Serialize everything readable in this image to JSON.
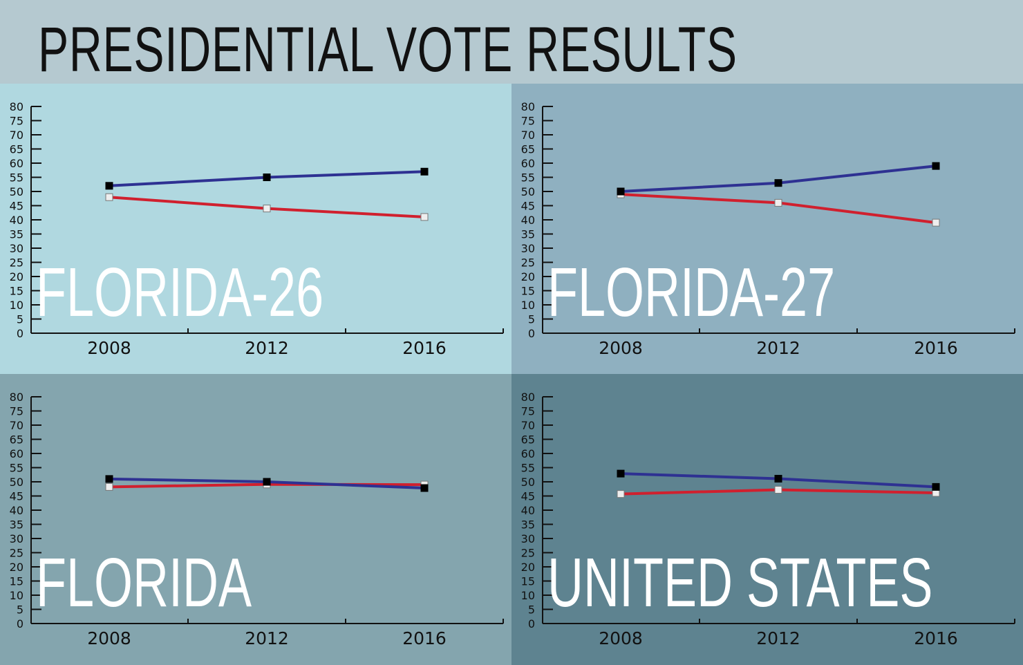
{
  "title": "PRESIDENTIAL VOTE RESULTS",
  "colors": {
    "background": "#b5c9d0",
    "blue_series": "#2e3192",
    "red_series": "#d0202e"
  },
  "chart_data": [
    {
      "type": "line",
      "title": "FLORIDA-26",
      "background": "#b0d8e0",
      "categories": [
        "2008",
        "2012",
        "2016"
      ],
      "ylim": [
        0,
        80
      ],
      "yticks": [
        "0",
        "5",
        "10",
        "15",
        "20",
        "25",
        "30",
        "35",
        "40",
        "45",
        "50",
        "55",
        "60",
        "65",
        "70",
        "75",
        "80"
      ],
      "series": [
        {
          "color": "#2e3192",
          "marker": "black square",
          "values": [
            52,
            55,
            57
          ]
        },
        {
          "color": "#d0202e",
          "marker": "white square",
          "values": [
            48,
            44,
            41
          ]
        }
      ]
    },
    {
      "type": "line",
      "title": "FLORIDA-27",
      "background": "#8fb0c0",
      "categories": [
        "2008",
        "2012",
        "2016"
      ],
      "ylim": [
        0,
        80
      ],
      "yticks": [
        "0",
        "5",
        "10",
        "15",
        "20",
        "25",
        "30",
        "35",
        "40",
        "45",
        "50",
        "55",
        "60",
        "65",
        "70",
        "75",
        "80"
      ],
      "series": [
        {
          "color": "#2e3192",
          "marker": "black square",
          "values": [
            50,
            53,
            59
          ]
        },
        {
          "color": "#d0202e",
          "marker": "white square",
          "values": [
            49,
            46,
            39
          ]
        }
      ]
    },
    {
      "type": "line",
      "title": "FLORIDA",
      "background": "#84a5ae",
      "categories": [
        "2008",
        "2012",
        "2016"
      ],
      "ylim": [
        0,
        80
      ],
      "yticks": [
        "0",
        "5",
        "10",
        "15",
        "20",
        "25",
        "30",
        "35",
        "40",
        "45",
        "50",
        "55",
        "60",
        "65",
        "70",
        "75",
        "80"
      ],
      "series": [
        {
          "color": "#2e3192",
          "marker": "black square",
          "values": [
            51,
            50,
            47.8
          ]
        },
        {
          "color": "#d0202e",
          "marker": "white square",
          "values": [
            48.2,
            49.1,
            49
          ]
        }
      ]
    },
    {
      "type": "line",
      "title": "UNITED STATES",
      "background": "#5e8390",
      "categories": [
        "2008",
        "2012",
        "2016"
      ],
      "ylim": [
        0,
        80
      ],
      "yticks": [
        "0",
        "5",
        "10",
        "15",
        "20",
        "25",
        "30",
        "35",
        "40",
        "45",
        "50",
        "55",
        "60",
        "65",
        "70",
        "75",
        "80"
      ],
      "series": [
        {
          "color": "#2e3192",
          "marker": "black square",
          "values": [
            52.9,
            51.1,
            48.2
          ]
        },
        {
          "color": "#d0202e",
          "marker": "white square",
          "values": [
            45.7,
            47.2,
            46.1
          ]
        }
      ]
    }
  ]
}
